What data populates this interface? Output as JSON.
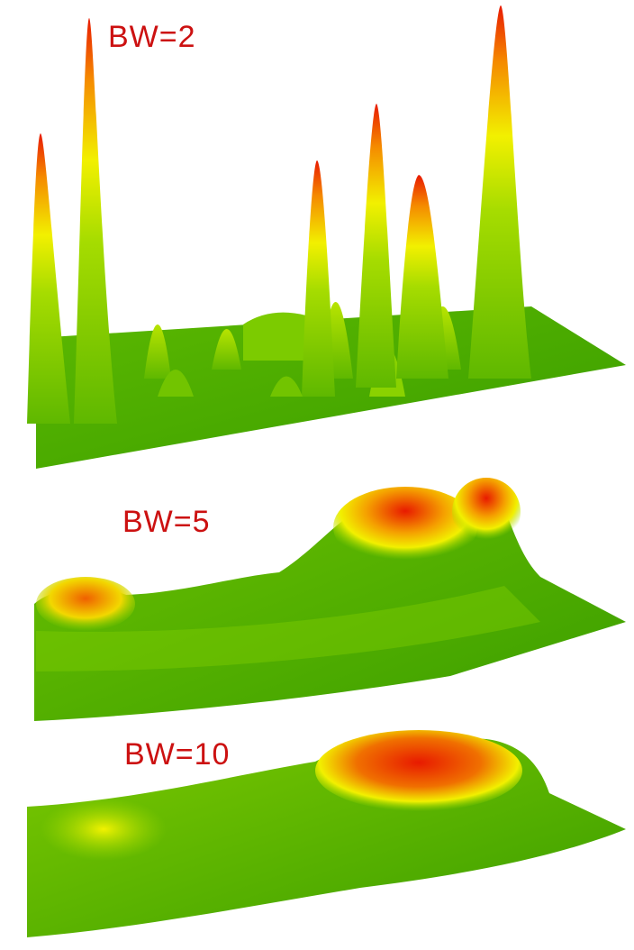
{
  "panels": [
    {
      "label": "BW=2"
    },
    {
      "label": "BW=5"
    },
    {
      "label": "BW=10"
    }
  ],
  "colors": {
    "low": "#3fa500",
    "mid": "#8fd400",
    "yellow": "#f5f500",
    "high": "#e81a00",
    "label": "#cc1111"
  }
}
